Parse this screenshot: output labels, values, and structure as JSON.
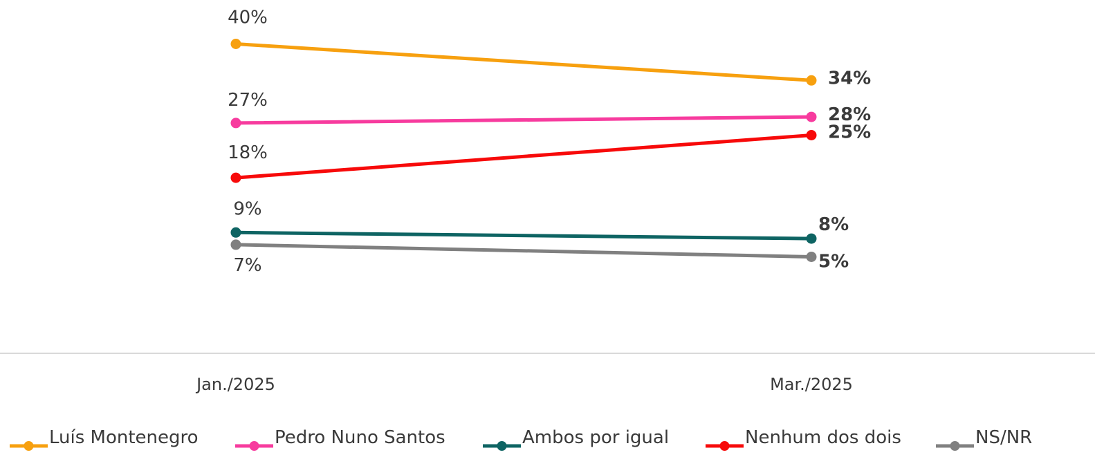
{
  "chart_data": {
    "type": "line",
    "x": [
      "Jan./2025",
      "Mar./2025"
    ],
    "series": [
      {
        "name": "Luís Montenegro",
        "values": [
          40,
          34
        ],
        "color": "#F7A00F",
        "labels": [
          "40%",
          "34%"
        ]
      },
      {
        "name": "Pedro Nuno Santos",
        "values": [
          27,
          28
        ],
        "color": "#F73B9E",
        "labels": [
          "27%",
          "28%"
        ]
      },
      {
        "name": "Ambos por igual",
        "values": [
          9,
          8
        ],
        "color": "#0E6463",
        "labels": [
          "9%",
          "8%"
        ]
      },
      {
        "name": "Nenhum dos dois",
        "values": [
          18,
          25
        ],
        "color": "#F70A0A",
        "labels": [
          "18%",
          "25%"
        ]
      },
      {
        "name": "NS/NR",
        "values": [
          7,
          5
        ],
        "color": "#808080",
        "labels": [
          "7%",
          "5%"
        ]
      }
    ],
    "ylim": [
      0,
      45
    ],
    "grid": false,
    "legend_position": "bottom"
  }
}
